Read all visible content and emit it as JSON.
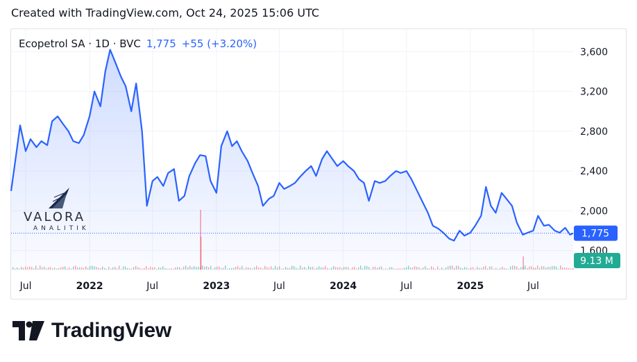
{
  "header": {
    "text": "Created with TradingView.com, Oct 24, 2025 15:06 UTC"
  },
  "legend": {
    "symbol": "Ecopetrol SA · 1D · BVC",
    "last": "1,775",
    "change": "+55 (+3.20%)"
  },
  "watermark": {
    "name": "VALORA",
    "sub": "ANALITIK"
  },
  "footer": {
    "brand": "TradingView",
    "logo_icon": "tradingview-logo-icon"
  },
  "colors": {
    "line": "#2962ff",
    "price_badge": "#2962ff",
    "volume_badge": "#22ab94",
    "grid": "#f0f3fa",
    "text": "#131722"
  },
  "chart_data": {
    "type": "area",
    "title": "",
    "symbol": "Ecopetrol SA",
    "interval": "1D",
    "exchange": "BVC",
    "ylim": [
      1500,
      3700
    ],
    "y_ticks": [
      "3,600",
      "3,200",
      "2,800",
      "2,400",
      "2,000",
      "1,600"
    ],
    "y_tick_values": [
      3600,
      3200,
      2800,
      2400,
      2000,
      1600
    ],
    "x_ticks": [
      {
        "label": "Jul",
        "t": "2021-07-01",
        "bold": false
      },
      {
        "label": "2022",
        "t": "2022-01-01",
        "bold": true
      },
      {
        "label": "Jul",
        "t": "2022-07-01",
        "bold": false
      },
      {
        "label": "2023",
        "t": "2023-01-01",
        "bold": true
      },
      {
        "label": "Jul",
        "t": "2023-07-01",
        "bold": false
      },
      {
        "label": "2024",
        "t": "2024-01-01",
        "bold": true
      },
      {
        "label": "Jul",
        "t": "2024-07-01",
        "bold": false
      },
      {
        "label": "2025",
        "t": "2025-01-01",
        "bold": true
      },
      {
        "label": "Jul",
        "t": "2025-07-01",
        "bold": false
      }
    ],
    "x_range": [
      "2021-05-20",
      "2025-10-24"
    ],
    "last_price": 1775,
    "last_price_label": "1,775",
    "volume_label": "9.13 M",
    "series": [
      {
        "x": [
          "2021-05-20",
          "2021-06-01",
          "2021-06-15",
          "2021-07-01",
          "2021-07-15",
          "2021-08-01",
          "2021-08-15",
          "2021-09-01",
          "2021-09-15",
          "2021-10-01",
          "2021-10-15",
          "2021-11-01",
          "2021-11-15",
          "2021-12-01",
          "2021-12-15",
          "2022-01-01",
          "2022-01-15",
          "2022-02-01",
          "2022-02-15",
          "2022-03-01",
          "2022-03-15",
          "2022-04-01",
          "2022-04-15",
          "2022-05-01",
          "2022-05-15",
          "2022-06-01",
          "2022-06-15",
          "2022-07-01",
          "2022-07-15",
          "2022-08-01",
          "2022-08-15",
          "2022-09-01",
          "2022-09-15",
          "2022-10-01",
          "2022-10-15",
          "2022-11-01",
          "2022-11-15",
          "2022-12-01",
          "2022-12-15",
          "2023-01-01",
          "2023-01-15",
          "2023-02-01",
          "2023-02-15",
          "2023-03-01",
          "2023-03-15",
          "2023-04-01",
          "2023-04-15",
          "2023-05-01",
          "2023-05-15",
          "2023-06-01",
          "2023-06-15",
          "2023-07-01",
          "2023-07-15",
          "2023-08-01",
          "2023-08-15",
          "2023-09-01",
          "2023-09-15",
          "2023-10-01",
          "2023-10-15",
          "2023-11-01",
          "2023-11-15",
          "2023-12-01",
          "2023-12-15",
          "2024-01-01",
          "2024-01-15",
          "2024-02-01",
          "2024-02-15",
          "2024-03-01",
          "2024-03-15",
          "2024-04-01",
          "2024-04-15",
          "2024-05-01",
          "2024-05-15",
          "2024-06-01",
          "2024-06-15",
          "2024-07-01",
          "2024-07-15",
          "2024-08-01",
          "2024-08-15",
          "2024-09-01",
          "2024-09-15",
          "2024-10-01",
          "2024-10-15",
          "2024-11-01",
          "2024-11-15",
          "2024-12-01",
          "2024-12-15",
          "2025-01-01",
          "2025-01-15",
          "2025-02-01",
          "2025-02-15",
          "2025-03-01",
          "2025-03-15",
          "2025-04-01",
          "2025-04-15",
          "2025-05-01",
          "2025-05-15",
          "2025-06-01",
          "2025-06-15",
          "2025-07-01",
          "2025-07-15",
          "2025-08-01",
          "2025-08-15",
          "2025-09-01",
          "2025-09-15",
          "2025-10-01",
          "2025-10-15",
          "2025-10-24"
        ],
        "values": [
          2200,
          2500,
          2860,
          2600,
          2720,
          2640,
          2700,
          2660,
          2900,
          2950,
          2880,
          2800,
          2700,
          2680,
          2760,
          2950,
          3200,
          3050,
          3400,
          3620,
          3500,
          3350,
          3250,
          3000,
          3280,
          2800,
          2050,
          2300,
          2340,
          2250,
          2380,
          2420,
          2100,
          2150,
          2350,
          2480,
          2560,
          2550,
          2300,
          2180,
          2650,
          2800,
          2650,
          2700,
          2600,
          2500,
          2380,
          2250,
          2050,
          2120,
          2150,
          2280,
          2220,
          2250,
          2280,
          2350,
          2400,
          2450,
          2350,
          2520,
          2600,
          2520,
          2450,
          2500,
          2450,
          2400,
          2320,
          2280,
          2100,
          2300,
          2280,
          2300,
          2350,
          2400,
          2380,
          2400,
          2320,
          2200,
          2100,
          1980,
          1850,
          1820,
          1780,
          1720,
          1700,
          1800,
          1750,
          1780,
          1850,
          1950,
          2240,
          2050,
          1980,
          2180,
          2120,
          2050,
          1880,
          1760,
          1780,
          1800,
          1950,
          1850,
          1860,
          1800,
          1780,
          1830,
          1760,
          1775
        ]
      }
    ],
    "volume_spikes": [
      {
        "t": "2022-11-15",
        "value": 100
      },
      {
        "t": "2022-11-16",
        "value": 55
      },
      {
        "t": "2025-06-01",
        "value": 22
      }
    ]
  }
}
